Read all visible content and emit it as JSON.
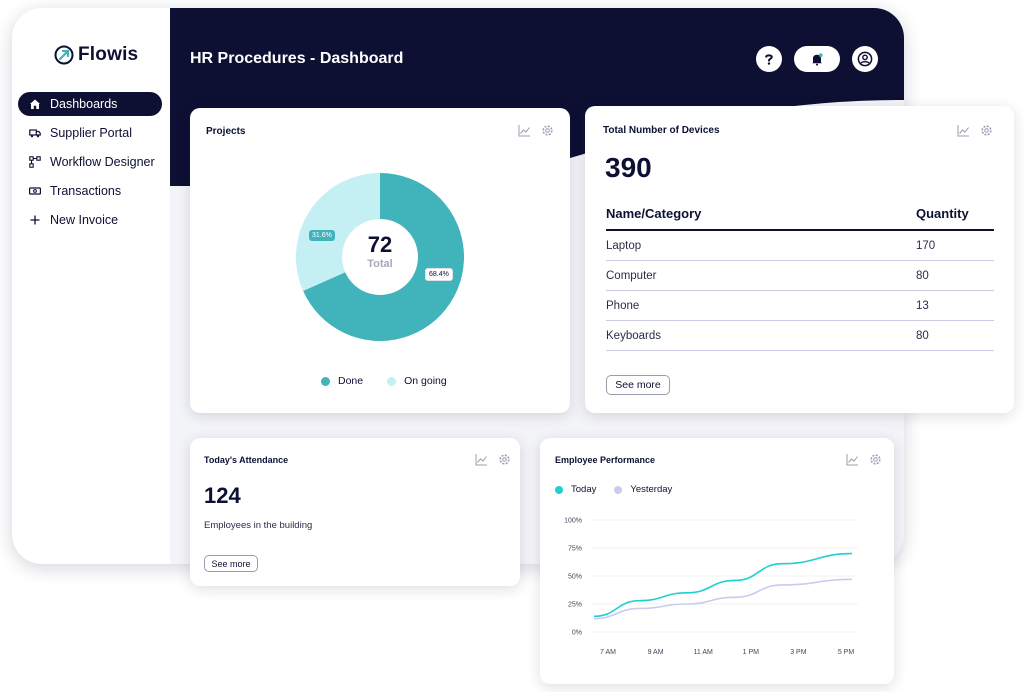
{
  "app": {
    "logo_text": "Flowis",
    "page_title": "HR Procedures - Dashboard",
    "colors": {
      "navy": "#0d1033",
      "teal": "#41b3bb",
      "light_teal": "#c4eff3",
      "line_today": "#1fcfd3",
      "line_yesterday": "#c9cbf0"
    }
  },
  "sidebar": {
    "items": [
      {
        "label": "Dashboards",
        "icon": "home-icon",
        "active": true
      },
      {
        "label": "Supplier Portal",
        "icon": "truck-icon",
        "active": false
      },
      {
        "label": "Workflow Designer",
        "icon": "workflow-icon",
        "active": false
      },
      {
        "label": "Transactions",
        "icon": "cash-icon",
        "active": false
      },
      {
        "label": "New Invoice",
        "icon": "plus-icon",
        "active": false
      }
    ]
  },
  "header_actions": [
    "help-icon",
    "bell-icon",
    "user-icon"
  ],
  "projects": {
    "title": "Projects",
    "total_value": "72",
    "total_label": "Total",
    "done_pct_label": "68.4%",
    "ongoing_pct_label": "31.6%",
    "legend": {
      "done": "Done",
      "ongoing": "On going"
    },
    "chart_data": {
      "type": "pie",
      "labels": [
        "Done",
        "On going"
      ],
      "values": [
        68.4,
        31.6
      ],
      "center_value": 72,
      "center_label": "Total"
    }
  },
  "devices": {
    "title": "Total Number of Devices",
    "total": "390",
    "columns": {
      "name": "Name/Category",
      "quantity": "Quantity"
    },
    "rows": [
      {
        "name": "Laptop",
        "quantity": "170"
      },
      {
        "name": "Computer",
        "quantity": "80"
      },
      {
        "name": "Phone",
        "quantity": "13"
      },
      {
        "name": "Keyboards",
        "quantity": "80"
      }
    ],
    "see_more": "See more"
  },
  "attendance": {
    "title": "Today's Attendance",
    "count": "124",
    "subtitle": "Employees in the building",
    "see_more": "See more"
  },
  "performance": {
    "title": "Employee Performance",
    "legend": {
      "today": "Today",
      "yesterday": "Yesterday"
    },
    "chart_data": {
      "type": "line",
      "x": [
        "7 AM",
        "9 AM",
        "11 AM",
        "1 PM",
        "3 PM",
        "5 PM"
      ],
      "y_ticks": [
        "0%",
        "25%",
        "50%",
        "75%",
        "100%"
      ],
      "ylim": [
        0,
        100
      ],
      "series": [
        {
          "name": "Today",
          "values": [
            14,
            28,
            35,
            46,
            61,
            70
          ]
        },
        {
          "name": "Yesterday",
          "values": [
            12,
            21,
            25,
            31,
            42,
            47
          ]
        }
      ]
    }
  }
}
